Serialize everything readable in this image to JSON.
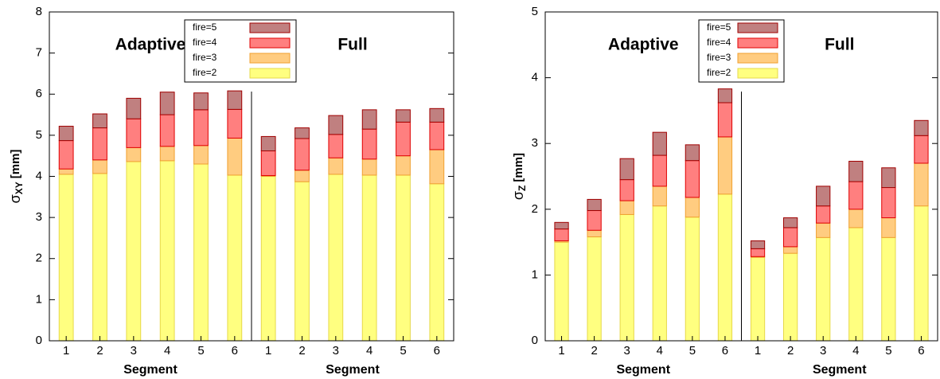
{
  "chart_data": [
    {
      "type": "bar",
      "stacked": true,
      "ylabel_symbol": "σ",
      "ylabel_subscript": "XY",
      "ylabel_unit": "[mm]",
      "xlabels": [
        "Segment",
        "Segment"
      ],
      "annotations": [
        "Adaptive",
        "Full"
      ],
      "categories": [
        "1",
        "2",
        "3",
        "4",
        "5",
        "6",
        "1",
        "2",
        "3",
        "4",
        "5",
        "6"
      ],
      "ylim": [
        0,
        8
      ],
      "yticks": [
        0,
        1,
        2,
        3,
        4,
        5,
        6,
        7,
        8
      ],
      "series": [
        {
          "name": "fire=2",
          "color": "#ffff80",
          "edgecolor": "#e6d84a",
          "values": [
            4.05,
            4.07,
            4.36,
            4.38,
            4.3,
            4.03,
            4.0,
            3.87,
            4.05,
            4.03,
            4.03,
            3.82
          ]
        },
        {
          "name": "fire=3",
          "color": "#ffcc80",
          "edgecolor": "#f0a030",
          "values": [
            0.13,
            0.33,
            0.34,
            0.35,
            0.45,
            0.9,
            0.02,
            0.28,
            0.4,
            0.39,
            0.47,
            0.83
          ]
        },
        {
          "name": "fire=4",
          "color": "#ff7f7f",
          "edgecolor": "#e00000",
          "values": [
            0.69,
            0.78,
            0.7,
            0.77,
            0.87,
            0.7,
            0.6,
            0.77,
            0.57,
            0.73,
            0.82,
            0.67
          ]
        },
        {
          "name": "fire=5",
          "color": "#c08080",
          "edgecolor": "#a00000",
          "values": [
            0.35,
            0.34,
            0.5,
            0.55,
            0.41,
            0.45,
            0.35,
            0.26,
            0.46,
            0.47,
            0.3,
            0.33
          ]
        }
      ]
    },
    {
      "type": "bar",
      "stacked": true,
      "ylabel_symbol": "σ",
      "ylabel_subscript": "Z",
      "ylabel_unit": "[mm]",
      "xlabels": [
        "Segment",
        "Segment"
      ],
      "annotations": [
        "Adaptive",
        "Full"
      ],
      "categories": [
        "1",
        "2",
        "3",
        "4",
        "5",
        "6",
        "1",
        "2",
        "3",
        "4",
        "5",
        "6"
      ],
      "ylim": [
        0,
        5
      ],
      "yticks": [
        0,
        1,
        2,
        3,
        4,
        5
      ],
      "series": [
        {
          "name": "fire=2",
          "color": "#ffff80",
          "edgecolor": "#e6d84a",
          "values": [
            1.5,
            1.58,
            1.92,
            2.05,
            1.88,
            2.23,
            1.27,
            1.33,
            1.57,
            1.72,
            1.57,
            2.05
          ]
        },
        {
          "name": "fire=3",
          "color": "#ffcc80",
          "edgecolor": "#f0a030",
          "values": [
            0.02,
            0.1,
            0.21,
            0.3,
            0.3,
            0.87,
            0.01,
            0.1,
            0.22,
            0.28,
            0.3,
            0.65
          ]
        },
        {
          "name": "fire=4",
          "color": "#ff7f7f",
          "edgecolor": "#e00000",
          "values": [
            0.18,
            0.3,
            0.32,
            0.47,
            0.56,
            0.52,
            0.12,
            0.29,
            0.26,
            0.42,
            0.46,
            0.42
          ]
        },
        {
          "name": "fire=5",
          "color": "#c08080",
          "edgecolor": "#a00000",
          "values": [
            0.1,
            0.17,
            0.32,
            0.35,
            0.24,
            0.21,
            0.12,
            0.15,
            0.3,
            0.31,
            0.3,
            0.23
          ]
        }
      ]
    }
  ]
}
